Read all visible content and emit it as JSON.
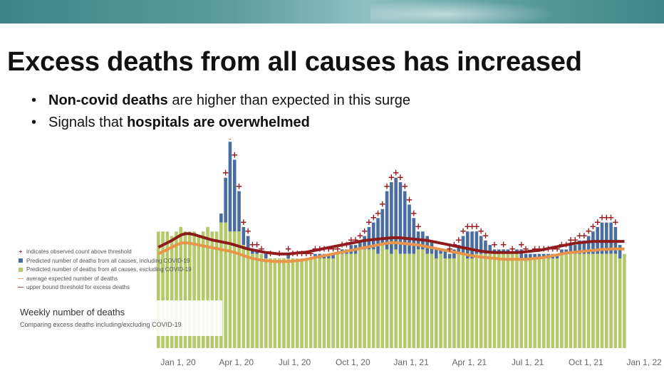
{
  "slide": {
    "title": "Excess deaths from all causes has increased",
    "bullet_marker": "•",
    "bullets": [
      {
        "bold": "Non-covid deaths",
        "rest": " are higher than expected in this surge"
      },
      {
        "pre": "Signals that ",
        "bold": "hospitals are overwhelmed"
      }
    ]
  },
  "legend": {
    "items": [
      {
        "symbol": "+",
        "color": "#9b1c22",
        "label": "indicates observed count above threshold"
      },
      {
        "symbol": "square",
        "color": "#4a6da0",
        "label": "Predicted number of deaths from all causes, including COVID-19"
      },
      {
        "symbol": "square",
        "color": "#b3c96a",
        "label": "Predicted number of deaths from all causes, excluding COVID-19"
      },
      {
        "symbol": "—",
        "color": "#e8944a",
        "label": "average expected number of deaths"
      },
      {
        "symbol": "—",
        "color": "#8e1b1b",
        "label": "upper bound threshold for excess deaths"
      }
    ]
  },
  "caption": {
    "title": "Weekly number of deaths",
    "subtitle": "Comparing excess deaths including/excluding COVID-19"
  },
  "chart_data": {
    "type": "bar",
    "title": "Weekly number of deaths",
    "subtitle": "Comparing excess deaths including/excluding COVID-19",
    "x_tick_labels": [
      "Jan 1, 20",
      "Apr 1, 20",
      "Jul 1, 20",
      "Oct 1, 20",
      "Jan 1, 21",
      "Apr 1, 21",
      "Jul 1, 21",
      "Oct 1, 21",
      "Jan 1, 22"
    ],
    "x_tick_week_index": [
      0,
      13,
      26,
      39,
      52,
      65,
      78,
      91,
      104
    ],
    "gridlines": false,
    "colors": {
      "covid": "#4a6da0",
      "non_covid": "#b3c96a",
      "expected": "#e8944a",
      "threshold": "#8e1b1b",
      "marker": "#9b1c22"
    },
    "series": [
      {
        "name": "Predicted number of deaths from all causes, excluding COVID-19",
        "values": [
          26,
          26,
          26,
          25,
          26,
          27,
          26,
          26,
          26,
          25,
          26,
          27,
          26,
          26,
          28,
          28,
          26,
          26,
          26,
          23,
          22,
          21,
          21,
          21,
          20,
          20,
          20,
          20,
          20,
          20,
          20,
          20,
          20,
          20,
          20,
          20,
          20,
          20,
          20,
          20,
          21,
          21,
          21,
          21,
          21,
          22,
          22,
          22,
          22,
          21,
          23,
          22,
          21,
          22,
          21,
          21,
          21,
          21,
          22,
          22,
          21,
          21,
          20,
          21,
          20,
          20,
          20,
          21,
          21,
          20,
          20,
          21,
          21,
          21,
          21,
          21,
          21,
          21,
          21,
          21,
          21,
          20,
          20,
          20,
          20,
          20,
          20,
          20,
          20,
          20,
          21,
          21,
          21,
          21,
          21,
          21,
          21,
          21,
          21,
          21,
          21,
          21,
          21,
          20,
          21
        ]
      },
      {
        "name": "Predicted number of deaths from all causes, including COVID-19",
        "values": [
          26,
          26,
          26,
          25,
          26,
          27,
          26,
          26,
          26,
          25,
          26,
          27,
          26,
          26,
          30,
          38,
          46,
          42,
          35,
          27,
          25,
          22,
          22,
          21,
          21,
          20,
          20,
          20,
          20,
          21,
          20,
          20,
          20,
          20,
          20,
          21,
          21,
          21,
          21,
          21,
          21,
          22,
          22,
          23,
          23,
          24,
          25,
          27,
          28,
          29,
          31,
          35,
          37,
          38,
          37,
          35,
          32,
          29,
          26,
          26,
          25,
          24,
          22,
          22,
          22,
          21,
          22,
          23,
          25,
          26,
          26,
          26,
          25,
          24,
          23,
          22,
          22,
          22,
          22,
          21,
          22,
          22,
          21,
          21,
          21,
          21,
          21,
          21,
          21,
          21,
          22,
          22,
          23,
          23,
          24,
          24,
          25,
          26,
          27,
          28,
          28,
          28,
          27,
          23,
          18
        ]
      },
      {
        "name": "average expected number of deaths",
        "values": [
          21,
          21.5,
          22,
          22.5,
          23,
          23.4,
          23.5,
          23.4,
          23.2,
          23,
          22.8,
          22.6,
          22.4,
          22.2,
          22,
          21.8,
          21.6,
          21.3,
          21,
          20.6,
          20.3,
          20,
          19.8,
          19.6,
          19.5,
          19.4,
          19.3,
          19.3,
          19.3,
          19.3,
          19.4,
          19.5,
          19.6,
          19.8,
          20,
          20.2,
          20.4,
          20.6,
          20.8,
          21,
          21.2,
          21.4,
          21.6,
          21.8,
          22,
          22.2,
          22.4,
          22.6,
          22.8,
          23,
          23.2,
          23.4,
          23.5,
          23.5,
          23.4,
          23.3,
          23.2,
          23.1,
          23,
          22.8,
          22.6,
          22.4,
          22.2,
          22,
          21.8,
          21.6,
          21.4,
          21.2,
          21,
          20.8,
          20.6,
          20.4,
          20.3,
          20.2,
          20.1,
          20,
          19.9,
          19.8,
          19.8,
          19.8,
          19.8,
          19.8,
          19.8,
          19.9,
          20,
          20.1,
          20.2,
          20.4,
          20.6,
          20.8,
          21,
          21.2,
          21.3,
          21.4,
          21.5,
          21.6,
          21.7,
          21.8,
          21.9,
          22,
          22,
          22.1,
          22.1,
          22.1,
          22.1
        ]
      },
      {
        "name": "upper bound threshold for excess deaths",
        "values": [
          22.5,
          23,
          23.5,
          24,
          24.6,
          25.2,
          25.5,
          25.5,
          25.3,
          25,
          24.7,
          24.4,
          24.1,
          23.9,
          23.7,
          23.5,
          23.3,
          23,
          22.7,
          22.4,
          22.1,
          21.9,
          21.7,
          21.5,
          21.3,
          21.2,
          21.1,
          21,
          21,
          21,
          21.1,
          21.2,
          21.3,
          21.4,
          21.6,
          21.8,
          22,
          22.2,
          22.4,
          22.6,
          22.8,
          23,
          23.2,
          23.4,
          23.6,
          23.8,
          24,
          24.1,
          24.2,
          24.3,
          24.4,
          24.5,
          24.6,
          24.6,
          24.6,
          24.5,
          24.4,
          24.3,
          24.2,
          24.1,
          24,
          23.8,
          23.6,
          23.4,
          23.2,
          23,
          22.8,
          22.6,
          22.4,
          22.2,
          22,
          21.8,
          21.6,
          21.5,
          21.4,
          21.3,
          21.3,
          21.3,
          21.3,
          21.3,
          21.3,
          21.4,
          21.5,
          21.6,
          21.7,
          21.8,
          22,
          22.2,
          22.4,
          22.6,
          22.8,
          23,
          23.2,
          23.4,
          23.5,
          23.6,
          23.7,
          23.8,
          23.8,
          23.8,
          23.8,
          23.8,
          23.8,
          23.8,
          23.8
        ]
      }
    ],
    "above_threshold_weeks": [
      15,
      16,
      17,
      18,
      19,
      20,
      21,
      22,
      23,
      25,
      27,
      29,
      30,
      31,
      32,
      33,
      34,
      35,
      36,
      37,
      38,
      39,
      40,
      41,
      42,
      43,
      44,
      45,
      46,
      47,
      48,
      49,
      50,
      51,
      52,
      53,
      54,
      55,
      56,
      57,
      58,
      65,
      66,
      67,
      68,
      69,
      70,
      71,
      72,
      73,
      75,
      77,
      79,
      81,
      82,
      84,
      85,
      86,
      87,
      88,
      89,
      90,
      91,
      92,
      93,
      94,
      95,
      96,
      97,
      98,
      99,
      100,
      101,
      102
    ]
  }
}
